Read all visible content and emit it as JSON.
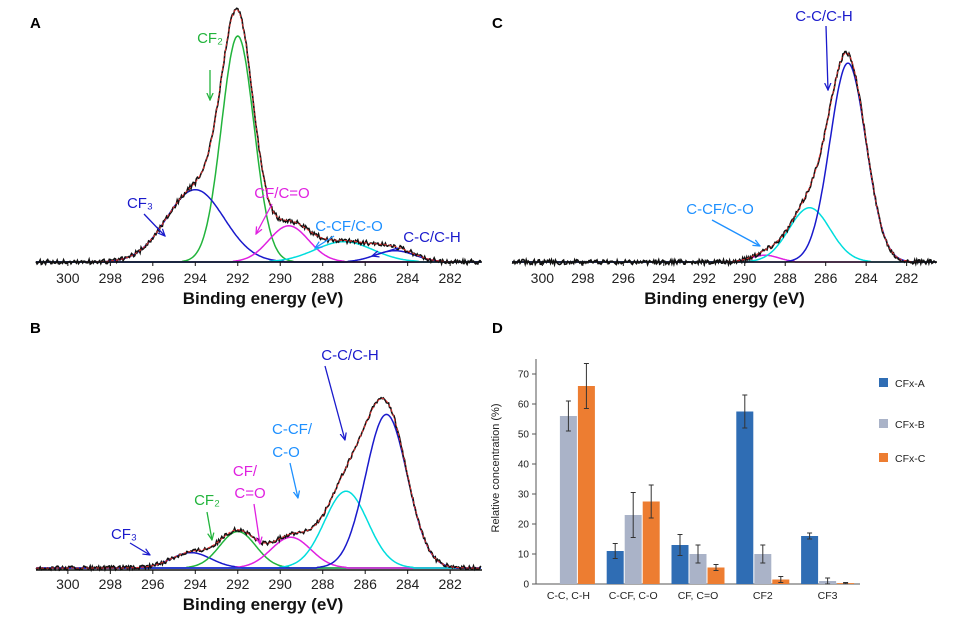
{
  "colors": {
    "envelope": "#111111",
    "fit": "#e03030",
    "cf2": "#22b43c",
    "cf3": "#1a1acc",
    "cfco": "#e020e0",
    "ccfco": "#00dddd",
    "ccfco_label": "#1e90ff",
    "cc": "#1a1acc",
    "cfxA": "#2f6db4",
    "cfxB": "#aab3c8",
    "cfxC": "#ed7d31"
  },
  "xps_axis": {
    "ticks": [
      "300",
      "298",
      "296",
      "294",
      "292",
      "290",
      "288",
      "286",
      "284",
      "282"
    ],
    "tick_values": [
      300,
      298,
      296,
      294,
      292,
      290,
      288,
      286,
      284,
      282
    ],
    "xlabel": "Binding energy (eV)",
    "x_range": [
      301.5,
      280.5
    ]
  },
  "panels": {
    "A": {
      "letter": "A",
      "labels": {
        "cf2": "CF₂",
        "cf3": "CF₃",
        "cfco": "CF/C=O",
        "ccfco": "C-CF/C-O",
        "cc": "C-C/C-H"
      }
    },
    "B": {
      "letter": "B",
      "labels": {
        "cf3": "CF₃",
        "cf2": "CF₂",
        "cf_l1": "CF/",
        "cf_l2": "C=O",
        "ccf_l1": "C-CF/",
        "ccf_l2": "C-O",
        "cc": "C-C/C-H"
      }
    },
    "C": {
      "letter": "C",
      "labels": {
        "cc": "C-C/C-H",
        "ccfco": "C-CF/C-O"
      }
    },
    "D": {
      "letter": "D"
    }
  },
  "chart_data": [
    {
      "panel": "A",
      "type": "line",
      "xlabel": "Binding energy (eV)",
      "xlim": [
        301.5,
        280.5
      ],
      "components": [
        {
          "name": "CF₂",
          "center": 292.0,
          "height": 1.0,
          "fwhm": 1.8
        },
        {
          "name": "CF₃",
          "center": 294.0,
          "height": 0.32,
          "fwhm": 3.2
        },
        {
          "name": "CF/C=O",
          "center": 289.6,
          "height": 0.16,
          "fwhm": 2.2
        },
        {
          "name": "C-CF/C-O",
          "center": 287.0,
          "height": 0.09,
          "fwhm": 3.2
        },
        {
          "name": "C-C/C-H",
          "center": 284.6,
          "height": 0.05,
          "fwhm": 2.2
        }
      ]
    },
    {
      "panel": "B",
      "type": "line",
      "xlabel": "Binding energy (eV)",
      "xlim": [
        301.5,
        280.5
      ],
      "components": [
        {
          "name": "CF₃",
          "center": 294.2,
          "height": 0.08,
          "fwhm": 2.2
        },
        {
          "name": "CF₂",
          "center": 292.0,
          "height": 0.19,
          "fwhm": 2.0
        },
        {
          "name": "CF/C=O",
          "center": 289.5,
          "height": 0.16,
          "fwhm": 2.2
        },
        {
          "name": "C-CF/C-O",
          "center": 286.9,
          "height": 0.4,
          "fwhm": 2.4
        },
        {
          "name": "C-C/C-H",
          "center": 285.0,
          "height": 0.8,
          "fwhm": 2.3
        }
      ]
    },
    {
      "panel": "C",
      "type": "line",
      "xlabel": "Binding energy (eV)",
      "xlim": [
        301.5,
        280.5
      ],
      "components": [
        {
          "name": "CF/C=O",
          "center": 289.0,
          "height": 0.03,
          "fwhm": 1.6
        },
        {
          "name": "C-CF/C-O",
          "center": 286.8,
          "height": 0.24,
          "fwhm": 2.4
        },
        {
          "name": "C-C/C-H",
          "center": 284.9,
          "height": 0.88,
          "fwhm": 2.1
        }
      ]
    },
    {
      "panel": "D",
      "type": "bar",
      "ylabel": "Relative concentration (%)",
      "ylim": [
        0,
        75
      ],
      "yticks": [
        0,
        10,
        20,
        30,
        40,
        50,
        60,
        70
      ],
      "ytick_labels": [
        "0",
        "10",
        "20",
        "30",
        "40",
        "50",
        "60",
        "70"
      ],
      "categories": [
        "C-C, C-H",
        "C-CF, C-O",
        "CF, C=O",
        "CF2",
        "CF3"
      ],
      "series": [
        {
          "name": "CFx-A",
          "values": [
            0,
            11,
            13,
            57.5,
            16
          ],
          "errors": [
            0,
            2.5,
            3.5,
            5.5,
            1
          ]
        },
        {
          "name": "CFx-B",
          "values": [
            56,
            23,
            10,
            10,
            1
          ],
          "errors": [
            5,
            7.5,
            3,
            3,
            1
          ]
        },
        {
          "name": "CFx-C",
          "values": [
            66,
            27.5,
            5.5,
            1.5,
            0.3
          ],
          "errors": [
            7.5,
            5.5,
            1,
            1,
            0.2
          ]
        }
      ]
    }
  ]
}
